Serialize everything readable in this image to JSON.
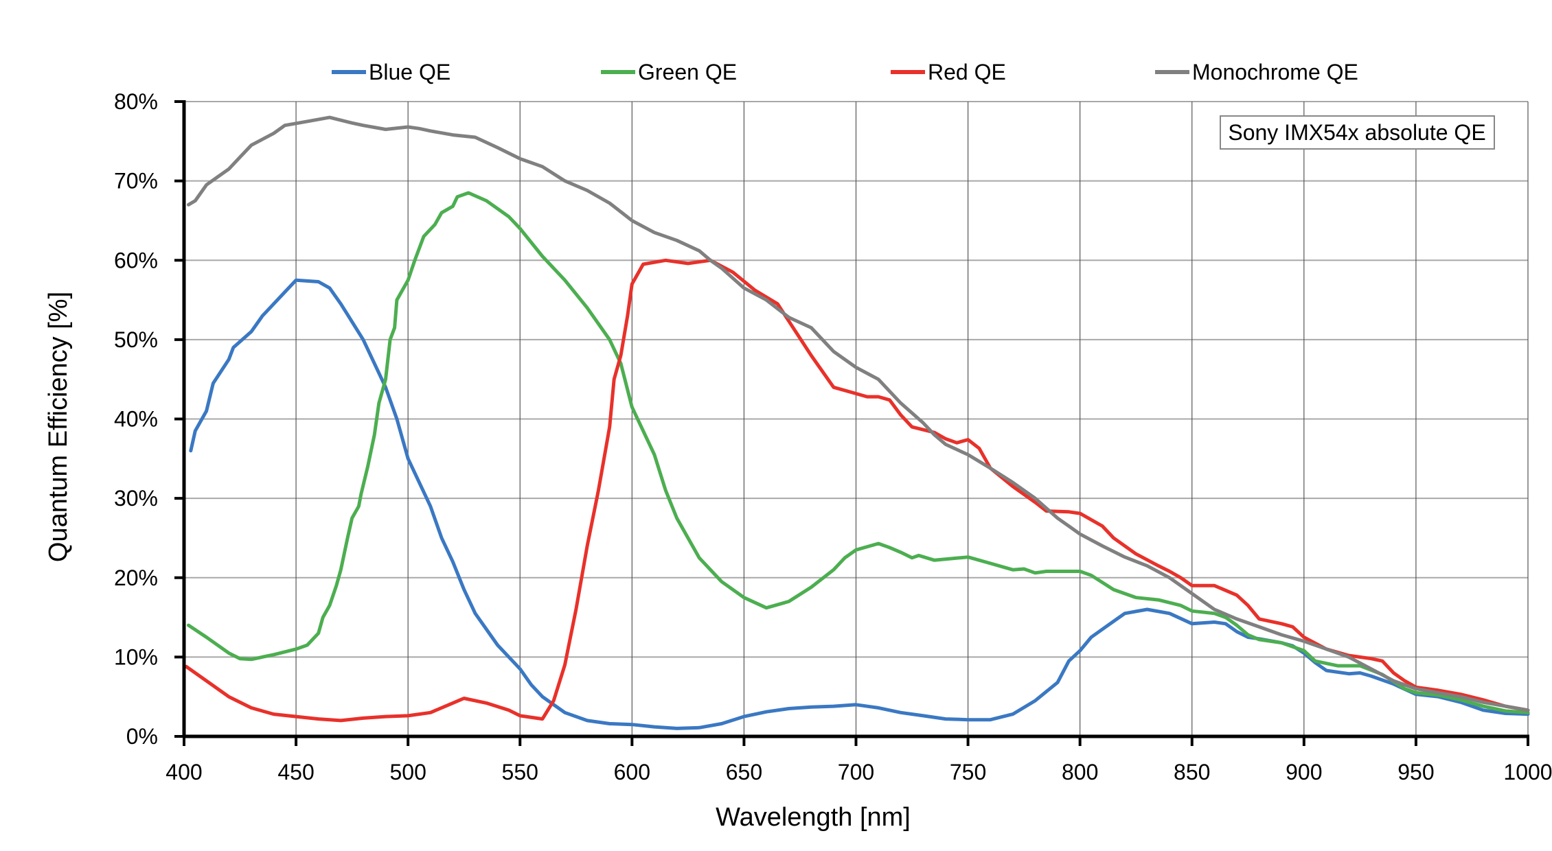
{
  "chart_data": {
    "type": "line",
    "title": "",
    "annotation": "Sony IMX54x absolute QE",
    "xlabel": "Wavelength [nm]",
    "ylabel": "Quantum Efficiency [%]",
    "xlim": [
      400,
      1000
    ],
    "ylim": [
      0,
      80
    ],
    "xticks": [
      400,
      450,
      500,
      550,
      600,
      650,
      700,
      750,
      800,
      850,
      900,
      950,
      1000
    ],
    "xtick_labels": [
      "400",
      "450",
      "500",
      "550",
      "600",
      "650",
      "700",
      "750",
      "800",
      "850",
      "900",
      "950",
      "1000"
    ],
    "yticks": [
      0,
      10,
      20,
      30,
      40,
      50,
      60,
      70,
      80
    ],
    "ytick_labels": [
      "0%",
      "10%",
      "20%",
      "30%",
      "40%",
      "50%",
      "60%",
      "70%",
      "80%"
    ],
    "grid": true,
    "legend_position": "top",
    "series": [
      {
        "name": "Blue QE",
        "color": "#3a78c3",
        "points": [
          [
            403,
            36
          ],
          [
            405,
            38.5
          ],
          [
            410,
            41
          ],
          [
            413,
            44.5
          ],
          [
            420,
            47.5
          ],
          [
            422,
            49
          ],
          [
            430,
            51
          ],
          [
            435,
            53
          ],
          [
            445,
            56
          ],
          [
            450,
            57.5
          ],
          [
            460,
            57.3
          ],
          [
            465,
            56.5
          ],
          [
            470,
            54.5
          ],
          [
            480,
            50
          ],
          [
            490,
            44
          ],
          [
            495,
            40
          ],
          [
            500,
            35
          ],
          [
            510,
            29
          ],
          [
            515,
            25
          ],
          [
            520,
            22
          ],
          [
            525,
            18.5
          ],
          [
            530,
            15.5
          ],
          [
            540,
            11.5
          ],
          [
            550,
            8.5
          ],
          [
            555,
            6.5
          ],
          [
            560,
            5
          ],
          [
            570,
            3
          ],
          [
            580,
            2
          ],
          [
            590,
            1.6
          ],
          [
            600,
            1.5
          ],
          [
            610,
            1.2
          ],
          [
            620,
            1.0
          ],
          [
            630,
            1.1
          ],
          [
            640,
            1.6
          ],
          [
            650,
            2.5
          ],
          [
            660,
            3.1
          ],
          [
            670,
            3.5
          ],
          [
            680,
            3.7
          ],
          [
            690,
            3.8
          ],
          [
            700,
            4.0
          ],
          [
            710,
            3.6
          ],
          [
            720,
            3.0
          ],
          [
            730,
            2.6
          ],
          [
            740,
            2.2
          ],
          [
            750,
            2.1
          ],
          [
            760,
            2.1
          ],
          [
            770,
            2.8
          ],
          [
            780,
            4.5
          ],
          [
            790,
            6.8
          ],
          [
            795,
            9.5
          ],
          [
            800,
            10.8
          ],
          [
            805,
            12.5
          ],
          [
            810,
            13.5
          ],
          [
            815,
            14.5
          ],
          [
            820,
            15.5
          ],
          [
            830,
            16
          ],
          [
            840,
            15.5
          ],
          [
            850,
            14.2
          ],
          [
            860,
            14.4
          ],
          [
            865,
            14.2
          ],
          [
            870,
            13.2
          ],
          [
            875,
            12.5
          ],
          [
            880,
            12.3
          ],
          [
            890,
            11.8
          ],
          [
            895,
            11.4
          ],
          [
            900,
            10.5
          ],
          [
            905,
            9.3
          ],
          [
            910,
            8.3
          ],
          [
            920,
            7.9
          ],
          [
            925,
            8.0
          ],
          [
            930,
            7.6
          ],
          [
            940,
            6.6
          ],
          [
            950,
            5.3
          ],
          [
            960,
            5.0
          ],
          [
            970,
            4.3
          ],
          [
            980,
            3.3
          ],
          [
            990,
            2.9
          ],
          [
            1000,
            2.8
          ]
        ]
      },
      {
        "name": "Green QE",
        "color": "#4cae50",
        "points": [
          [
            402,
            14
          ],
          [
            410,
            12.5
          ],
          [
            420,
            10.5
          ],
          [
            425,
            9.8
          ],
          [
            430,
            9.7
          ],
          [
            440,
            10.3
          ],
          [
            450,
            11
          ],
          [
            455,
            11.5
          ],
          [
            460,
            13
          ],
          [
            462,
            15
          ],
          [
            465,
            16.5
          ],
          [
            468,
            19
          ],
          [
            470,
            21
          ],
          [
            473,
            25
          ],
          [
            475,
            27.5
          ],
          [
            478,
            29
          ],
          [
            479,
            30.5
          ],
          [
            482,
            34
          ],
          [
            485,
            38
          ],
          [
            487,
            42
          ],
          [
            490,
            45
          ],
          [
            492,
            50
          ],
          [
            494,
            51.5
          ],
          [
            495,
            55
          ],
          [
            500,
            57.5
          ],
          [
            503,
            60
          ],
          [
            507,
            63
          ],
          [
            512,
            64.5
          ],
          [
            515,
            66
          ],
          [
            520,
            66.8
          ],
          [
            522,
            68
          ],
          [
            527,
            68.5
          ],
          [
            535,
            67.5
          ],
          [
            545,
            65.5
          ],
          [
            550,
            64
          ],
          [
            560,
            60.5
          ],
          [
            570,
            57.5
          ],
          [
            580,
            54
          ],
          [
            590,
            50
          ],
          [
            595,
            47
          ],
          [
            600,
            41.5
          ],
          [
            610,
            35.5
          ],
          [
            615,
            31
          ],
          [
            620,
            27.5
          ],
          [
            630,
            22.5
          ],
          [
            640,
            19.5
          ],
          [
            650,
            17.5
          ],
          [
            660,
            16.2
          ],
          [
            670,
            17
          ],
          [
            680,
            18.8
          ],
          [
            690,
            21
          ],
          [
            695,
            22.5
          ],
          [
            700,
            23.5
          ],
          [
            710,
            24.3
          ],
          [
            715,
            23.8
          ],
          [
            720,
            23.2
          ],
          [
            725,
            22.5
          ],
          [
            728,
            22.8
          ],
          [
            735,
            22.2
          ],
          [
            750,
            22.6
          ],
          [
            760,
            21.8
          ],
          [
            770,
            21
          ],
          [
            775,
            21.1
          ],
          [
            780,
            20.6
          ],
          [
            785,
            20.8
          ],
          [
            800,
            20.8
          ],
          [
            805,
            20.3
          ],
          [
            815,
            18.5
          ],
          [
            825,
            17.5
          ],
          [
            835,
            17.2
          ],
          [
            845,
            16.5
          ],
          [
            850,
            15.8
          ],
          [
            860,
            15.5
          ],
          [
            865,
            15
          ],
          [
            870,
            14
          ],
          [
            875,
            12.8
          ],
          [
            880,
            12.2
          ],
          [
            890,
            11.8
          ],
          [
            900,
            10.8
          ],
          [
            905,
            9.5
          ],
          [
            915,
            8.9
          ],
          [
            925,
            8.9
          ],
          [
            935,
            7.8
          ],
          [
            945,
            6.0
          ],
          [
            950,
            5.5
          ],
          [
            960,
            5.2
          ],
          [
            970,
            4.6
          ],
          [
            980,
            3.8
          ],
          [
            990,
            3.2
          ],
          [
            1000,
            3.0
          ]
        ]
      },
      {
        "name": "Red QE",
        "color": "#e8312a",
        "points": [
          [
            401,
            8.8
          ],
          [
            410,
            7
          ],
          [
            420,
            5
          ],
          [
            430,
            3.6
          ],
          [
            440,
            2.8
          ],
          [
            450,
            2.5
          ],
          [
            460,
            2.2
          ],
          [
            470,
            2.0
          ],
          [
            480,
            2.3
          ],
          [
            490,
            2.5
          ],
          [
            500,
            2.6
          ],
          [
            510,
            3.0
          ],
          [
            520,
            4.2
          ],
          [
            525,
            4.8
          ],
          [
            535,
            4.2
          ],
          [
            545,
            3.3
          ],
          [
            550,
            2.6
          ],
          [
            560,
            2.2
          ],
          [
            565,
            4.5
          ],
          [
            570,
            9
          ],
          [
            575,
            16
          ],
          [
            580,
            24
          ],
          [
            585,
            31
          ],
          [
            590,
            39
          ],
          [
            592,
            45
          ],
          [
            595,
            48
          ],
          [
            598,
            53
          ],
          [
            600,
            57
          ],
          [
            605,
            59.5
          ],
          [
            615,
            60
          ],
          [
            625,
            59.6
          ],
          [
            635,
            60
          ],
          [
            645,
            58.5
          ],
          [
            655,
            56.2
          ],
          [
            665,
            54.5
          ],
          [
            680,
            48
          ],
          [
            690,
            44
          ],
          [
            700,
            43.2
          ],
          [
            705,
            42.8
          ],
          [
            710,
            42.8
          ],
          [
            715,
            42.4
          ],
          [
            720,
            40.5
          ],
          [
            725,
            39
          ],
          [
            735,
            38.3
          ],
          [
            740,
            37.5
          ],
          [
            745,
            37
          ],
          [
            750,
            37.4
          ],
          [
            755,
            36.3
          ],
          [
            760,
            33.8
          ],
          [
            770,
            31.5
          ],
          [
            780,
            29.5
          ],
          [
            785,
            28.4
          ],
          [
            795,
            28.3
          ],
          [
            800,
            28.1
          ],
          [
            810,
            26.5
          ],
          [
            815,
            25
          ],
          [
            825,
            23
          ],
          [
            835,
            21.5
          ],
          [
            840,
            20.8
          ],
          [
            845,
            20
          ],
          [
            850,
            19
          ],
          [
            860,
            19
          ],
          [
            870,
            17.8
          ],
          [
            875,
            16.5
          ],
          [
            880,
            14.8
          ],
          [
            890,
            14.2
          ],
          [
            895,
            13.8
          ],
          [
            900,
            12.5
          ],
          [
            910,
            11
          ],
          [
            920,
            10.2
          ],
          [
            930,
            9.8
          ],
          [
            935,
            9.5
          ],
          [
            940,
            8
          ],
          [
            945,
            7
          ],
          [
            950,
            6.2
          ],
          [
            960,
            5.8
          ],
          [
            970,
            5.3
          ],
          [
            980,
            4.6
          ],
          [
            990,
            3.8
          ],
          [
            1000,
            3.3
          ]
        ]
      },
      {
        "name": "Monochrome QE",
        "color": "#808080",
        "points": [
          [
            402,
            67
          ],
          [
            405,
            67.5
          ],
          [
            410,
            69.5
          ],
          [
            415,
            70.5
          ],
          [
            420,
            71.5
          ],
          [
            425,
            73
          ],
          [
            430,
            74.5
          ],
          [
            440,
            76
          ],
          [
            445,
            77
          ],
          [
            455,
            77.5
          ],
          [
            465,
            78
          ],
          [
            475,
            77.3
          ],
          [
            480,
            77
          ],
          [
            490,
            76.5
          ],
          [
            500,
            76.8
          ],
          [
            505,
            76.6
          ],
          [
            510,
            76.3
          ],
          [
            520,
            75.8
          ],
          [
            530,
            75.5
          ],
          [
            540,
            74.2
          ],
          [
            550,
            72.8
          ],
          [
            560,
            71.8
          ],
          [
            570,
            70
          ],
          [
            580,
            68.8
          ],
          [
            590,
            67.2
          ],
          [
            600,
            65
          ],
          [
            610,
            63.5
          ],
          [
            620,
            62.5
          ],
          [
            630,
            61.2
          ],
          [
            635,
            60
          ],
          [
            640,
            59
          ],
          [
            650,
            56.5
          ],
          [
            660,
            55
          ],
          [
            670,
            52.8
          ],
          [
            680,
            51.5
          ],
          [
            690,
            48.5
          ],
          [
            700,
            46.5
          ],
          [
            710,
            45
          ],
          [
            720,
            42
          ],
          [
            730,
            39.5
          ],
          [
            735,
            38
          ],
          [
            740,
            36.8
          ],
          [
            750,
            35.5
          ],
          [
            760,
            33.8
          ],
          [
            770,
            32
          ],
          [
            780,
            30
          ],
          [
            790,
            27.5
          ],
          [
            795,
            26.5
          ],
          [
            800,
            25.5
          ],
          [
            810,
            24
          ],
          [
            820,
            22.6
          ],
          [
            830,
            21.5
          ],
          [
            840,
            20
          ],
          [
            850,
            18
          ],
          [
            860,
            16
          ],
          [
            870,
            14.8
          ],
          [
            880,
            13.8
          ],
          [
            890,
            12.8
          ],
          [
            900,
            12
          ],
          [
            910,
            11
          ],
          [
            920,
            10
          ],
          [
            930,
            8.5
          ],
          [
            940,
            7
          ],
          [
            950,
            6
          ],
          [
            960,
            5.5
          ],
          [
            970,
            5
          ],
          [
            980,
            4.3
          ],
          [
            990,
            3.8
          ],
          [
            1000,
            3.3
          ]
        ]
      }
    ]
  }
}
